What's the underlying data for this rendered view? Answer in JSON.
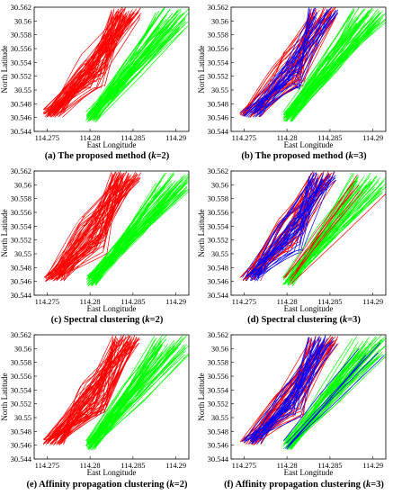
{
  "figure": {
    "xlabel": "East Longitude",
    "ylabel": "North Latitude",
    "xticks": [
      "114.275",
      "114.28",
      "114.285",
      "114.29"
    ],
    "yticks": [
      "30.562",
      "30.56",
      "30.558",
      "30.556",
      "30.554",
      "30.552",
      "30.55",
      "30.548",
      "30.546",
      "30.544"
    ]
  },
  "colors": {
    "red": "#ff0000",
    "green": "#00ff00",
    "blue": "#0000ff",
    "black": "#000000"
  },
  "chart_data": [
    {
      "type": "line",
      "caption": {
        "pre": "(a) The proposed method (",
        "k": "k",
        "post": "=2)"
      },
      "xlabel": "East Longitude",
      "ylabel": "North Latitude",
      "xlim": [
        114.2735,
        114.2915
      ],
      "ylim": [
        30.544,
        30.562
      ],
      "series": [
        {
          "color": "red",
          "count": 60,
          "group": "west"
        },
        {
          "color": "green",
          "count": 55,
          "group": "east"
        }
      ]
    },
    {
      "type": "line",
      "caption": {
        "pre": "(b) The proposed method (",
        "k": "k",
        "post": "=3)"
      },
      "xlabel": "East Longitude",
      "ylabel": "North Latitude",
      "xlim": [
        114.2735,
        114.2915
      ],
      "ylim": [
        30.544,
        30.562
      ],
      "series": [
        {
          "color": "red",
          "count": 40,
          "group": "west"
        },
        {
          "color": "blue",
          "count": 25,
          "group": "west"
        },
        {
          "color": "green",
          "count": 55,
          "group": "east"
        }
      ]
    },
    {
      "type": "line",
      "caption": {
        "pre": "(c) Spectral clustering (",
        "k": "k",
        "post": "=2)"
      },
      "xlabel": "East Longitude",
      "ylabel": "North Latitude",
      "xlim": [
        114.2735,
        114.2915
      ],
      "ylim": [
        30.544,
        30.562
      ],
      "series": [
        {
          "color": "red",
          "count": 60,
          "group": "west"
        },
        {
          "color": "green",
          "count": 55,
          "group": "east"
        }
      ]
    },
    {
      "type": "line",
      "caption": {
        "pre": "(d) Spectral clustering (",
        "k": "k",
        "post": "=3)"
      },
      "xlabel": "East Longitude",
      "ylabel": "North Latitude",
      "xlim": [
        114.2735,
        114.2915
      ],
      "ylim": [
        30.544,
        30.562
      ],
      "series": [
        {
          "color": "red",
          "count": 35,
          "group": "west"
        },
        {
          "color": "blue",
          "count": 30,
          "group": "west"
        },
        {
          "color": "green",
          "count": 45,
          "group": "east"
        },
        {
          "color": "red",
          "count": 8,
          "group": "east"
        }
      ]
    },
    {
      "type": "line",
      "caption": {
        "pre": "(e) Affinity propagation clustering (",
        "k": "k",
        "post": "=2)"
      },
      "xlabel": "East Longitude",
      "ylabel": "North Latitude",
      "xlim": [
        114.2735,
        114.2915
      ],
      "ylim": [
        30.544,
        30.562
      ],
      "series": [
        {
          "color": "red",
          "count": 60,
          "group": "west"
        },
        {
          "color": "green",
          "count": 55,
          "group": "east"
        }
      ]
    },
    {
      "type": "line",
      "caption": {
        "pre": "(f) Affinity propagation clustering (",
        "k": "k",
        "post": "=3)"
      },
      "xlabel": "East Longitude",
      "ylabel": "North Latitude",
      "xlim": [
        114.2735,
        114.2915
      ],
      "ylim": [
        30.544,
        30.562
      ],
      "series": [
        {
          "color": "red",
          "count": 40,
          "group": "west"
        },
        {
          "color": "blue",
          "count": 30,
          "group": "west"
        },
        {
          "color": "green",
          "count": 50,
          "group": "east"
        },
        {
          "color": "blue",
          "count": 6,
          "group": "east"
        }
      ]
    }
  ]
}
